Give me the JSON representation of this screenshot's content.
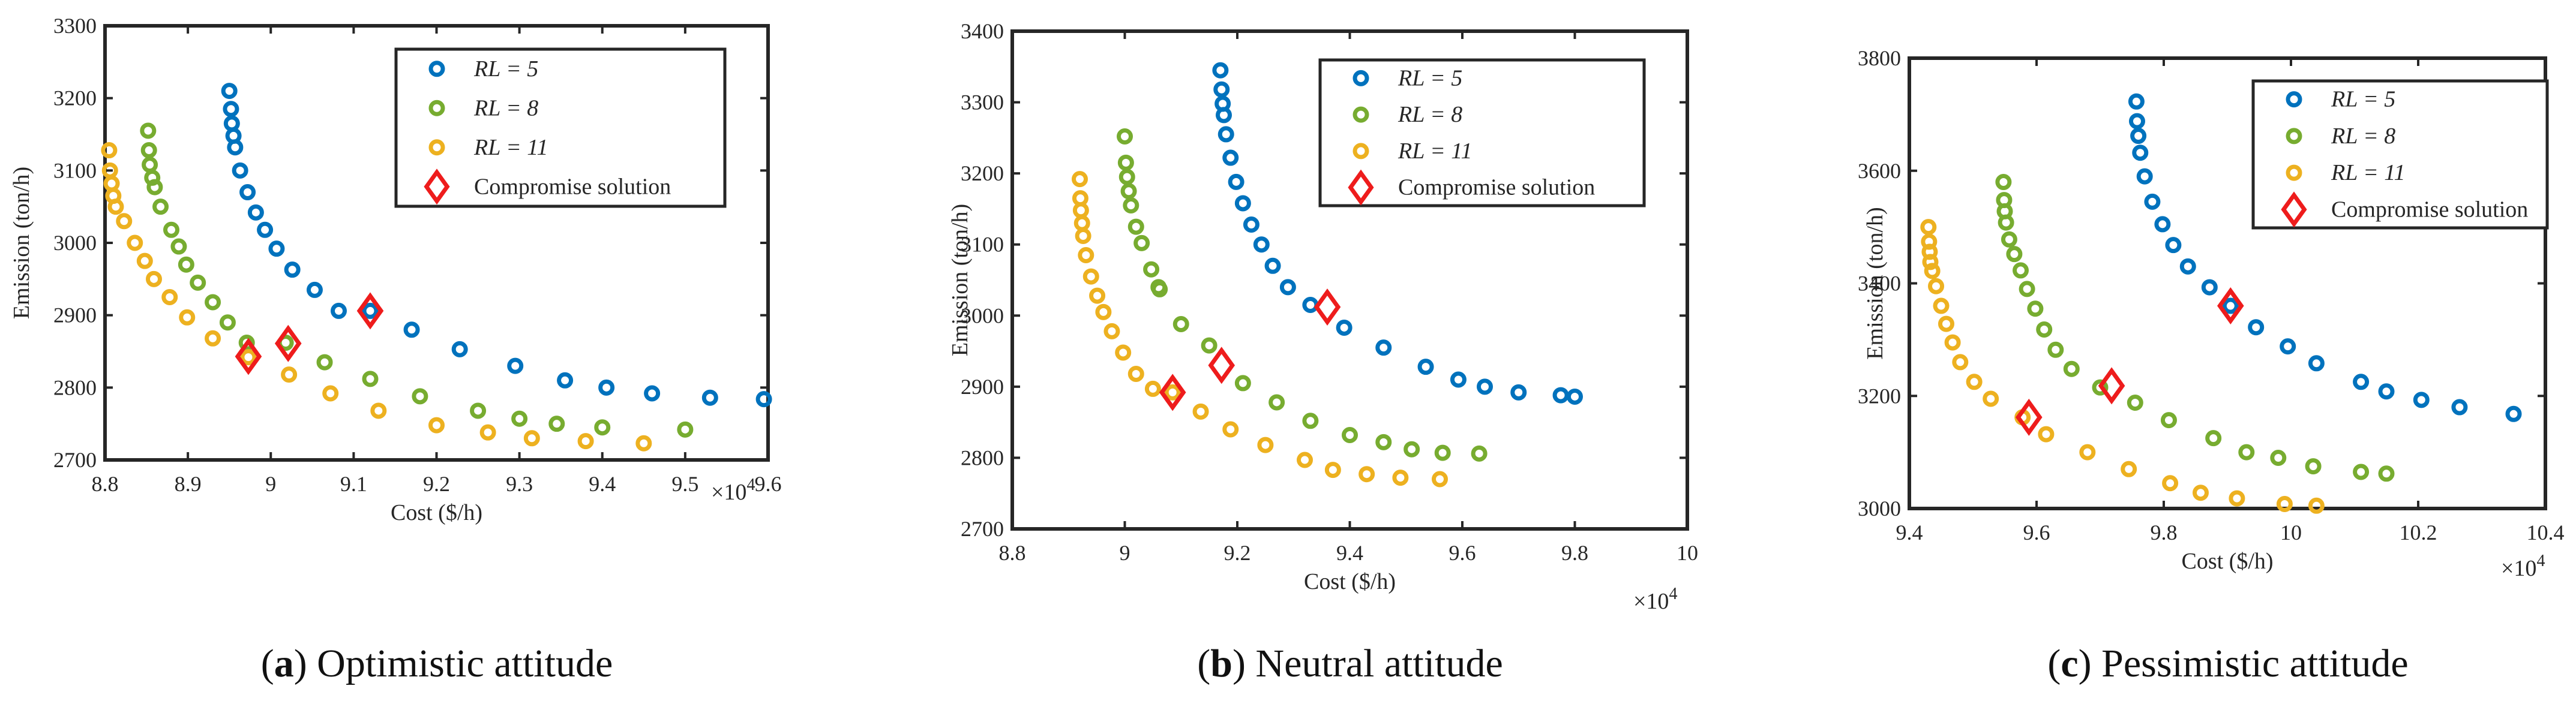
{
  "chart_data": [
    {
      "type": "scatter",
      "panel_label": "a",
      "caption": "Optimistic attitude",
      "xlabel": "Cost ($/h)",
      "ylabel": "Emission (ton/h)",
      "x_multiplier": "×10",
      "x_multiplier_exp": "4",
      "xlim": [
        8.8,
        9.6
      ],
      "ylim": [
        2700,
        3300
      ],
      "xticks": [
        8.8,
        8.9,
        9.0,
        9.1,
        9.2,
        9.3,
        9.4,
        9.5,
        9.6
      ],
      "xtick_labels": [
        "8.8",
        "8.9",
        "9",
        "9.1",
        "9.2",
        "9.3",
        "9.4",
        "9.5",
        "9.6"
      ],
      "yticks": [
        2700,
        2800,
        2900,
        3000,
        3100,
        3200,
        3300
      ],
      "ytick_labels": [
        "2700",
        "2800",
        "2900",
        "3000",
        "3100",
        "3200",
        "3300"
      ],
      "series": [
        {
          "name": "RL = 5",
          "color": "#0072bd",
          "points": [
            [
              8.95,
              3210
            ],
            [
              8.952,
              3185
            ],
            [
              8.953,
              3165
            ],
            [
              8.955,
              3148
            ],
            [
              8.957,
              3132
            ],
            [
              8.963,
              3100
            ],
            [
              8.972,
              3070
            ],
            [
              8.982,
              3042
            ],
            [
              8.993,
              3018
            ],
            [
              9.007,
              2992
            ],
            [
              9.026,
              2963
            ],
            [
              9.053,
              2935
            ],
            [
              9.082,
              2906
            ],
            [
              9.12,
              2906
            ],
            [
              9.17,
              2880
            ],
            [
              9.228,
              2853
            ],
            [
              9.295,
              2830
            ],
            [
              9.355,
              2810
            ],
            [
              9.405,
              2800
            ],
            [
              9.46,
              2792
            ],
            [
              9.53,
              2786
            ],
            [
              9.595,
              2784
            ]
          ]
        },
        {
          "name": "RL = 8",
          "color": "#77ac30",
          "points": [
            [
              8.852,
              3155
            ],
            [
              8.853,
              3128
            ],
            [
              8.854,
              3108
            ],
            [
              8.857,
              3090
            ],
            [
              8.86,
              3077
            ],
            [
              8.867,
              3050
            ],
            [
              8.88,
              3018
            ],
            [
              8.889,
              2995
            ],
            [
              8.898,
              2970
            ],
            [
              8.912,
              2945
            ],
            [
              8.93,
              2918
            ],
            [
              8.948,
              2890
            ],
            [
              8.971,
              2862
            ],
            [
              9.018,
              2862
            ],
            [
              9.065,
              2835
            ],
            [
              9.12,
              2812
            ],
            [
              9.18,
              2788
            ],
            [
              9.25,
              2768
            ],
            [
              9.3,
              2757
            ],
            [
              9.345,
              2750
            ],
            [
              9.4,
              2745
            ],
            [
              9.5,
              2742
            ]
          ]
        },
        {
          "name": "RL = 11",
          "color": "#edb120",
          "points": [
            [
              8.805,
              3128
            ],
            [
              8.806,
              3100
            ],
            [
              8.808,
              3082
            ],
            [
              8.81,
              3065
            ],
            [
              8.813,
              3050
            ],
            [
              8.823,
              3030
            ],
            [
              8.836,
              3000
            ],
            [
              8.848,
              2975
            ],
            [
              8.859,
              2950
            ],
            [
              8.878,
              2925
            ],
            [
              8.899,
              2897
            ],
            [
              8.93,
              2868
            ],
            [
              8.973,
              2842
            ],
            [
              9.022,
              2818
            ],
            [
              9.072,
              2792
            ],
            [
              9.13,
              2768
            ],
            [
              9.2,
              2748
            ],
            [
              9.262,
              2738
            ],
            [
              9.315,
              2730
            ],
            [
              9.38,
              2726
            ],
            [
              9.45,
              2723
            ]
          ]
        }
      ],
      "compromise": [
        [
          9.12,
          2906
        ],
        [
          8.973,
          2843
        ],
        [
          9.021,
          2861
        ]
      ]
    },
    {
      "type": "scatter",
      "panel_label": "b",
      "caption": "Neutral attitude",
      "xlabel": "Cost ($/h)",
      "ylabel": "Emission (ton/h)",
      "x_multiplier": "×10",
      "x_multiplier_exp": "4",
      "xlim": [
        8.8,
        10.0
      ],
      "ylim": [
        2700,
        3400
      ],
      "xticks": [
        8.8,
        9.0,
        9.2,
        9.4,
        9.6,
        9.8,
        10.0
      ],
      "xtick_labels": [
        "8.8",
        "9",
        "9.2",
        "9.4",
        "9.6",
        "9.8",
        "10"
      ],
      "yticks": [
        2700,
        2800,
        2900,
        3000,
        3100,
        3200,
        3300,
        3400
      ],
      "ytick_labels": [
        "2700",
        "2800",
        "2900",
        "3000",
        "3100",
        "3200",
        "3300",
        "3400"
      ],
      "series": [
        {
          "name": "RL = 5",
          "color": "#0072bd",
          "points": [
            [
              9.17,
              3345
            ],
            [
              9.172,
              3318
            ],
            [
              9.174,
              3298
            ],
            [
              9.176,
              3282
            ],
            [
              9.18,
              3255
            ],
            [
              9.188,
              3222
            ],
            [
              9.198,
              3188
            ],
            [
              9.21,
              3158
            ],
            [
              9.225,
              3128
            ],
            [
              9.243,
              3100
            ],
            [
              9.263,
              3070
            ],
            [
              9.29,
              3040
            ],
            [
              9.33,
              3015
            ],
            [
              9.39,
              2983
            ],
            [
              9.46,
              2955
            ],
            [
              9.535,
              2928
            ],
            [
              9.593,
              2910
            ],
            [
              9.64,
              2900
            ],
            [
              9.7,
              2892
            ],
            [
              9.775,
              2888
            ],
            [
              9.8,
              2886
            ]
          ]
        },
        {
          "name": "RL = 8",
          "color": "#77ac30",
          "points": [
            [
              9.0,
              3252
            ],
            [
              9.002,
              3215
            ],
            [
              9.004,
              3195
            ],
            [
              9.007,
              3175
            ],
            [
              9.011,
              3155
            ],
            [
              9.02,
              3125
            ],
            [
              9.03,
              3102
            ],
            [
              9.047,
              3065
            ],
            [
              9.06,
              3040
            ],
            [
              9.062,
              3037
            ],
            [
              9.1,
              2988
            ],
            [
              9.15,
              2958
            ],
            [
              9.21,
              2905
            ],
            [
              9.27,
              2878
            ],
            [
              9.33,
              2852
            ],
            [
              9.4,
              2832
            ],
            [
              9.46,
              2822
            ],
            [
              9.51,
              2812
            ],
            [
              9.565,
              2807
            ],
            [
              9.63,
              2806
            ]
          ]
        },
        {
          "name": "RL = 11",
          "color": "#edb120",
          "points": [
            [
              8.92,
              3192
            ],
            [
              8.921,
              3165
            ],
            [
              8.922,
              3148
            ],
            [
              8.924,
              3130
            ],
            [
              8.926,
              3112
            ],
            [
              8.931,
              3085
            ],
            [
              8.94,
              3055
            ],
            [
              8.951,
              3028
            ],
            [
              8.962,
              3005
            ],
            [
              8.977,
              2978
            ],
            [
              8.997,
              2948
            ],
            [
              9.02,
              2918
            ],
            [
              9.05,
              2897
            ],
            [
              9.085,
              2892
            ],
            [
              9.135,
              2865
            ],
            [
              9.188,
              2840
            ],
            [
              9.25,
              2818
            ],
            [
              9.32,
              2797
            ],
            [
              9.37,
              2783
            ],
            [
              9.43,
              2777
            ],
            [
              9.49,
              2772
            ],
            [
              9.56,
              2770
            ]
          ]
        }
      ],
      "compromise": [
        [
          9.36,
          3012
        ],
        [
          9.172,
          2930
        ],
        [
          9.085,
          2892
        ]
      ]
    },
    {
      "type": "scatter",
      "panel_label": "c",
      "caption": "Pessimistic attitude",
      "xlabel": "Cost ($/h)",
      "ylabel": "Emission (ton/h)",
      "x_multiplier": "×10",
      "x_multiplier_exp": "4",
      "xlim": [
        9.4,
        10.4
      ],
      "ylim": [
        3000,
        3800
      ],
      "xticks": [
        9.4,
        9.6,
        9.8,
        10.0,
        10.2,
        10.4
      ],
      "xtick_labels": [
        "9.4",
        "9.6",
        "9.8",
        "10",
        "10.2",
        "10.4"
      ],
      "yticks": [
        3000,
        3200,
        3400,
        3600,
        3800
      ],
      "ytick_labels": [
        "3000",
        "3200",
        "3400",
        "3600",
        "3800"
      ],
      "series": [
        {
          "name": "RL = 5",
          "color": "#0072bd",
          "points": [
            [
              9.757,
              3723
            ],
            [
              9.758,
              3688
            ],
            [
              9.76,
              3662
            ],
            [
              9.763,
              3632
            ],
            [
              9.77,
              3590
            ],
            [
              9.782,
              3545
            ],
            [
              9.798,
              3505
            ],
            [
              9.815,
              3468
            ],
            [
              9.838,
              3430
            ],
            [
              9.872,
              3393
            ],
            [
              9.905,
              3360
            ],
            [
              9.945,
              3322
            ],
            [
              9.995,
              3288
            ],
            [
              10.04,
              3258
            ],
            [
              10.11,
              3225
            ],
            [
              10.15,
              3208
            ],
            [
              10.205,
              3193
            ],
            [
              10.265,
              3180
            ],
            [
              10.35,
              3168
            ]
          ]
        },
        {
          "name": "RL = 8",
          "color": "#77ac30",
          "points": [
            [
              9.548,
              3580
            ],
            [
              9.549,
              3548
            ],
            [
              9.55,
              3528
            ],
            [
              9.552,
              3508
            ],
            [
              9.557,
              3478
            ],
            [
              9.565,
              3452
            ],
            [
              9.575,
              3423
            ],
            [
              9.585,
              3390
            ],
            [
              9.598,
              3355
            ],
            [
              9.612,
              3318
            ],
            [
              9.63,
              3282
            ],
            [
              9.655,
              3248
            ],
            [
              9.7,
              3215
            ],
            [
              9.755,
              3188
            ],
            [
              9.808,
              3157
            ],
            [
              9.878,
              3125
            ],
            [
              9.93,
              3100
            ],
            [
              9.98,
              3090
            ],
            [
              10.035,
              3075
            ],
            [
              10.11,
              3065
            ],
            [
              10.15,
              3062
            ]
          ]
        },
        {
          "name": "RL = 11",
          "color": "#edb120",
          "points": [
            [
              9.43,
              3500
            ],
            [
              9.431,
              3474
            ],
            [
              9.432,
              3456
            ],
            [
              9.433,
              3438
            ],
            [
              9.436,
              3422
            ],
            [
              9.442,
              3395
            ],
            [
              9.45,
              3360
            ],
            [
              9.458,
              3328
            ],
            [
              9.468,
              3295
            ],
            [
              9.48,
              3260
            ],
            [
              9.502,
              3225
            ],
            [
              9.528,
              3195
            ],
            [
              9.578,
              3162
            ],
            [
              9.615,
              3132
            ],
            [
              9.68,
              3100
            ],
            [
              9.745,
              3070
            ],
            [
              9.81,
              3045
            ],
            [
              9.858,
              3028
            ],
            [
              9.915,
              3018
            ],
            [
              9.99,
              3008
            ],
            [
              10.04,
              3005
            ]
          ]
        }
      ],
      "compromise": [
        [
          9.905,
          3360
        ],
        [
          9.718,
          3218
        ],
        [
          9.588,
          3162
        ]
      ]
    }
  ],
  "legend": {
    "compromise_label": "Compromise solution",
    "compromise_color": "#ee1c1c"
  }
}
